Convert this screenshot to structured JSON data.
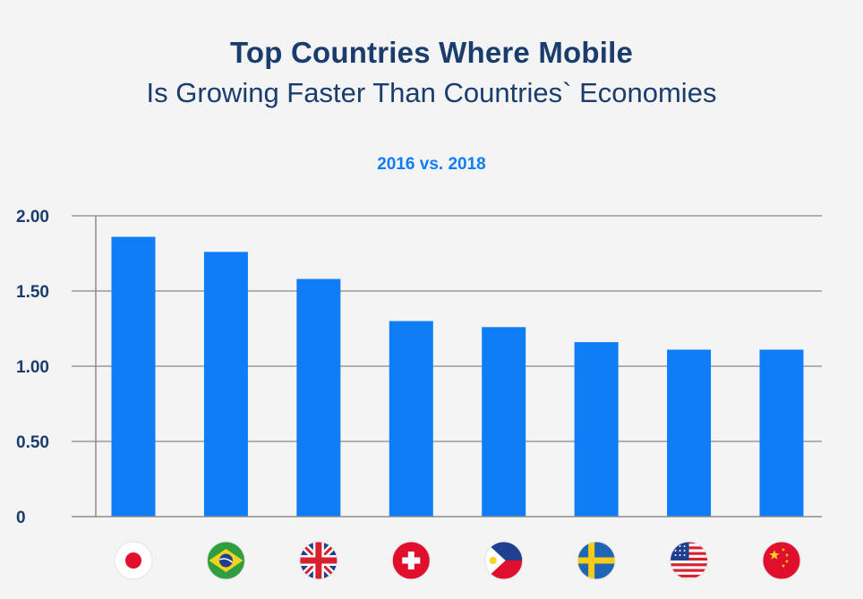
{
  "header": {
    "title": "Top Countries Where Mobile",
    "subtitle": "Is Growing Faster Than Countries` Economies",
    "period": "2016 vs. 2018"
  },
  "chart_data": {
    "type": "bar",
    "categories": [
      "Japan",
      "Brazil",
      "United Kingdom",
      "Switzerland",
      "Philippines",
      "Sweden",
      "United States",
      "China"
    ],
    "category_icons": [
      "japan-flag-icon",
      "brazil-flag-icon",
      "uk-flag-icon",
      "switzerland-flag-icon",
      "philippines-flag-icon",
      "sweden-flag-icon",
      "usa-flag-icon",
      "china-flag-icon"
    ],
    "values": [
      1.86,
      1.76,
      1.58,
      1.3,
      1.26,
      1.16,
      1.11,
      1.11
    ],
    "title": "Top Countries Where Mobile",
    "subtitle": "Is Growing Faster Than Countries` Economies",
    "xlabel": "",
    "ylabel": "",
    "ylim": [
      0,
      2
    ],
    "yticks": [
      "0",
      "0.50",
      "1.00",
      "1.50",
      "2.00"
    ],
    "ytick_values": [
      0,
      0.5,
      1,
      1.5,
      2
    ],
    "grid": true,
    "legend": "none",
    "colors": {
      "bar": "#0f7df6",
      "grid": "#9a9a9a",
      "axis": "#8c8c8c",
      "title": "#1a3d6d"
    }
  }
}
